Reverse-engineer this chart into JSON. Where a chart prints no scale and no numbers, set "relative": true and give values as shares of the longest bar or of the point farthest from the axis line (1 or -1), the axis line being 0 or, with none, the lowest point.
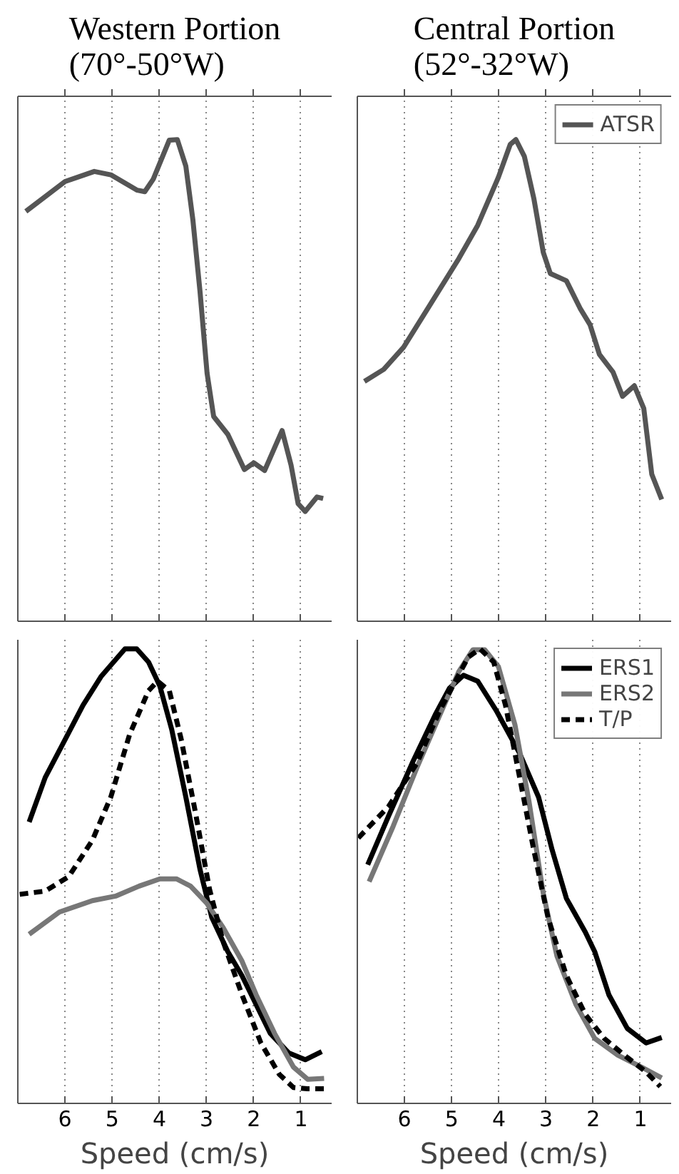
{
  "chart_data": [
    {
      "type": "line",
      "title": "Western Portion\n(70°-50°W)",
      "relative": true,
      "xlim": [
        7.0,
        0.35
      ],
      "xticks": [
        6,
        5,
        4,
        3,
        2,
        1
      ],
      "grid": "x",
      "tick_labels": false,
      "legend": false,
      "series": [
        {
          "color": "#555555",
          "x": [
            6.83,
            6.0,
            5.38,
            5.03,
            4.47,
            4.31,
            4.13,
            3.79,
            3.62,
            3.44,
            3.29,
            3.14,
            2.99,
            2.85,
            2.55,
            2.2,
            2.0,
            1.77,
            1.4,
            1.21,
            1.06,
            0.91,
            0.66,
            0.53
          ],
          "values": [
            0.851,
            0.913,
            0.934,
            0.927,
            0.895,
            0.892,
            0.918,
            0.999,
            1.0,
            0.945,
            0.833,
            0.685,
            0.515,
            0.425,
            0.388,
            0.315,
            0.329,
            0.313,
            0.396,
            0.324,
            0.244,
            0.228,
            0.258,
            0.255
          ]
        }
      ]
    },
    {
      "type": "line",
      "title": "Central Portion\n(52°-32°W)",
      "relative": true,
      "xlim": [
        7.0,
        0.35
      ],
      "xticks": [
        6,
        5,
        4,
        3,
        2,
        1
      ],
      "grid": "x",
      "tick_labels": false,
      "legend": "top right",
      "series": [
        {
          "name": "ATSR",
          "color": "#555555",
          "x": [
            6.85,
            6.44,
            6.02,
            5.44,
            4.85,
            4.45,
            4.01,
            3.76,
            3.64,
            3.46,
            3.26,
            3.06,
            2.91,
            2.57,
            2.27,
            2.07,
            1.87,
            1.58,
            1.38,
            1.13,
            0.93,
            0.76,
            0.55
          ],
          "values": [
            0.498,
            0.523,
            0.569,
            0.66,
            0.753,
            0.822,
            0.922,
            0.99,
            1.0,
            0.965,
            0.878,
            0.766,
            0.722,
            0.707,
            0.648,
            0.616,
            0.554,
            0.517,
            0.467,
            0.489,
            0.442,
            0.305,
            0.253
          ]
        }
      ]
    },
    {
      "type": "line",
      "xlabel": "Speed (cm/s)",
      "relative": true,
      "xlim": [
        7.0,
        0.35
      ],
      "xticks": [
        6,
        5,
        4,
        3,
        2,
        1
      ],
      "grid": "x",
      "tick_labels": "x",
      "legend": false,
      "series": [
        {
          "color": "#000000",
          "x": [
            6.76,
            6.42,
            6.02,
            5.62,
            5.23,
            4.73,
            4.48,
            4.23,
            3.99,
            3.74,
            3.44,
            3.14,
            2.89,
            2.55,
            2.25,
            2.0,
            1.65,
            1.26,
            0.91,
            0.56
          ],
          "values": [
            0.619,
            0.717,
            0.796,
            0.876,
            0.94,
            1.0,
            1.0,
            0.971,
            0.918,
            0.823,
            0.674,
            0.515,
            0.409,
            0.334,
            0.281,
            0.228,
            0.154,
            0.111,
            0.096,
            0.114
          ]
        },
        {
          "color": "#777777",
          "x": [
            6.76,
            6.12,
            5.42,
            4.93,
            4.43,
            3.99,
            3.64,
            3.34,
            3.0,
            2.65,
            2.25,
            1.95,
            1.56,
            1.16,
            0.86,
            0.51
          ],
          "values": [
            0.372,
            0.421,
            0.446,
            0.456,
            0.478,
            0.494,
            0.494,
            0.478,
            0.441,
            0.387,
            0.313,
            0.239,
            0.154,
            0.08,
            0.053,
            0.055
          ]
        },
        {
          "color": "#000000",
          "line_style": "dashed",
          "x": [
            6.96,
            6.42,
            5.92,
            5.42,
            5.03,
            4.63,
            4.23,
            4.04,
            3.79,
            3.54,
            3.24,
            2.94,
            2.65,
            2.25,
            1.85,
            1.46,
            1.16,
            0.86,
            0.51
          ],
          "values": [
            0.46,
            0.467,
            0.499,
            0.579,
            0.674,
            0.812,
            0.908,
            0.929,
            0.908,
            0.802,
            0.642,
            0.472,
            0.356,
            0.239,
            0.133,
            0.064,
            0.035,
            0.032,
            0.032
          ]
        }
      ]
    },
    {
      "type": "line",
      "xlabel": "Speed (cm/s)",
      "relative": true,
      "xlim": [
        7.0,
        0.35
      ],
      "xticks": [
        6,
        5,
        4,
        3,
        2,
        1
      ],
      "grid": "x",
      "tick_labels": "x",
      "legend": "top right",
      "series": [
        {
          "name": "ERS1",
          "color": "#000000",
          "x": [
            6.78,
            6.34,
            5.84,
            5.35,
            5.05,
            4.75,
            4.45,
            4.06,
            3.56,
            3.16,
            2.87,
            2.57,
            2.17,
            1.97,
            1.67,
            1.28,
            0.88,
            0.55
          ],
          "values": [
            0.525,
            0.632,
            0.748,
            0.855,
            0.913,
            0.942,
            0.929,
            0.865,
            0.77,
            0.674,
            0.557,
            0.451,
            0.377,
            0.334,
            0.239,
            0.165,
            0.133,
            0.145
          ]
        },
        {
          "name": "ERS2",
          "color": "#777777",
          "x": [
            6.75,
            6.24,
            5.74,
            5.25,
            4.85,
            4.55,
            4.3,
            4.01,
            3.66,
            3.36,
            3.06,
            2.77,
            2.37,
            1.97,
            1.48,
            0.98,
            0.55
          ],
          "values": [
            0.488,
            0.61,
            0.738,
            0.855,
            0.95,
            0.998,
            0.998,
            0.961,
            0.833,
            0.663,
            0.462,
            0.324,
            0.218,
            0.143,
            0.106,
            0.08,
            0.056
          ]
        },
        {
          "name": "T/P",
          "color": "#000000",
          "line_style": "dashed",
          "x": [
            6.98,
            6.34,
            5.74,
            5.25,
            4.65,
            4.4,
            4.11,
            3.86,
            3.56,
            3.26,
            2.96,
            2.57,
            2.17,
            1.77,
            1.28,
            0.88,
            0.58
          ],
          "values": [
            0.584,
            0.653,
            0.748,
            0.865,
            0.982,
            1.0,
            0.971,
            0.876,
            0.717,
            0.557,
            0.409,
            0.281,
            0.196,
            0.143,
            0.101,
            0.069,
            0.037
          ]
        }
      ]
    }
  ]
}
